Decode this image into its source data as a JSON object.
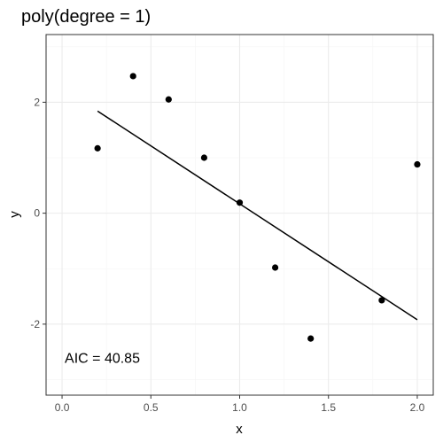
{
  "chart_data": {
    "type": "scatter",
    "title": "poly(degree = 1)",
    "xlabel": "x",
    "ylabel": "y",
    "xlim": [
      -0.09,
      2.09
    ],
    "ylim": [
      -3.28,
      3.22
    ],
    "x_ticks": [
      0.0,
      0.5,
      1.0,
      1.5,
      2.0
    ],
    "x_tick_labels": [
      "0.0",
      "0.5",
      "1.0",
      "1.5",
      "2.0"
    ],
    "y_ticks": [
      -2,
      0,
      2
    ],
    "y_tick_labels": [
      "-2",
      "0",
      "2"
    ],
    "x_minor_ticks": [
      0.25,
      0.75,
      1.25,
      1.75
    ],
    "y_minor_ticks": [
      -3,
      -1,
      1,
      3
    ],
    "grid": true,
    "series": [
      {
        "type": "scatter",
        "points": [
          {
            "x": 0.2,
            "y": 1.17
          },
          {
            "x": 0.4,
            "y": 2.47
          },
          {
            "x": 0.6,
            "y": 2.05
          },
          {
            "x": 0.8,
            "y": 1.0
          },
          {
            "x": 1.0,
            "y": 0.19
          },
          {
            "x": 1.2,
            "y": -0.98
          },
          {
            "x": 1.4,
            "y": -2.26
          },
          {
            "x": 1.8,
            "y": -1.57
          },
          {
            "x": 2.0,
            "y": 0.88
          }
        ]
      },
      {
        "type": "line",
        "points": [
          {
            "x": 0.2,
            "y": 1.84
          },
          {
            "x": 2.0,
            "y": -1.92
          }
        ]
      }
    ],
    "annotation": {
      "text": "AIC = 40.85",
      "x": 0.0,
      "y": -2.6
    }
  }
}
